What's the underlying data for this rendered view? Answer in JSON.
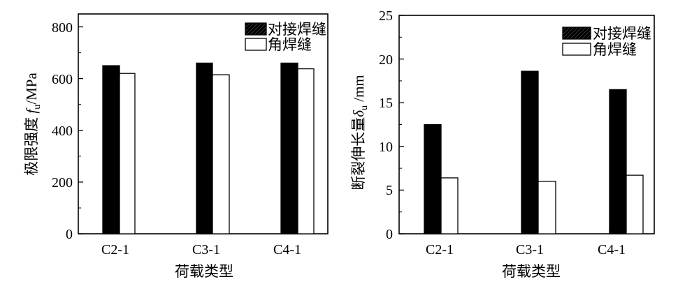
{
  "chart_data": [
    {
      "type": "bar",
      "categories": [
        "C2-1",
        "C3-1",
        "C4-1"
      ],
      "series": [
        {
          "name": "对接焊缝",
          "values": [
            650,
            660,
            660
          ],
          "fill": "#000000"
        },
        {
          "name": "角焊缝",
          "values": [
            620,
            615,
            638
          ],
          "fill": "#ffffff"
        }
      ],
      "xlabel": "荷载类型",
      "ylabel": {
        "main": "极限强度 ",
        "symbol": "f",
        "sub": "u",
        "unit": "/MPa"
      },
      "ylim": [
        0,
        850
      ],
      "yticks": [
        0,
        200,
        400,
        600,
        800
      ],
      "ytick_labels": [
        "0",
        "200",
        "400",
        "600",
        "800"
      ],
      "legend_position": "top-right"
    },
    {
      "type": "bar",
      "categories": [
        "C2-1",
        "C3-1",
        "C4-1"
      ],
      "series": [
        {
          "name": "对接焊缝",
          "values": [
            12.5,
            18.6,
            16.5
          ],
          "fill": "#000000"
        },
        {
          "name": "角焊缝",
          "values": [
            6.4,
            6.0,
            6.7
          ],
          "fill": "#ffffff"
        }
      ],
      "xlabel": "荷载类型",
      "ylabel": {
        "main": "断裂伸长量",
        "symbol": "δ",
        "sub": "u",
        "unit": " /mm"
      },
      "ylim": [
        0,
        25
      ],
      "yticks": [
        0,
        5,
        10,
        15,
        20,
        25
      ],
      "ytick_labels": [
        "0",
        "5",
        "10",
        "15",
        "20",
        "25"
      ],
      "legend_position": "top-right"
    }
  ]
}
